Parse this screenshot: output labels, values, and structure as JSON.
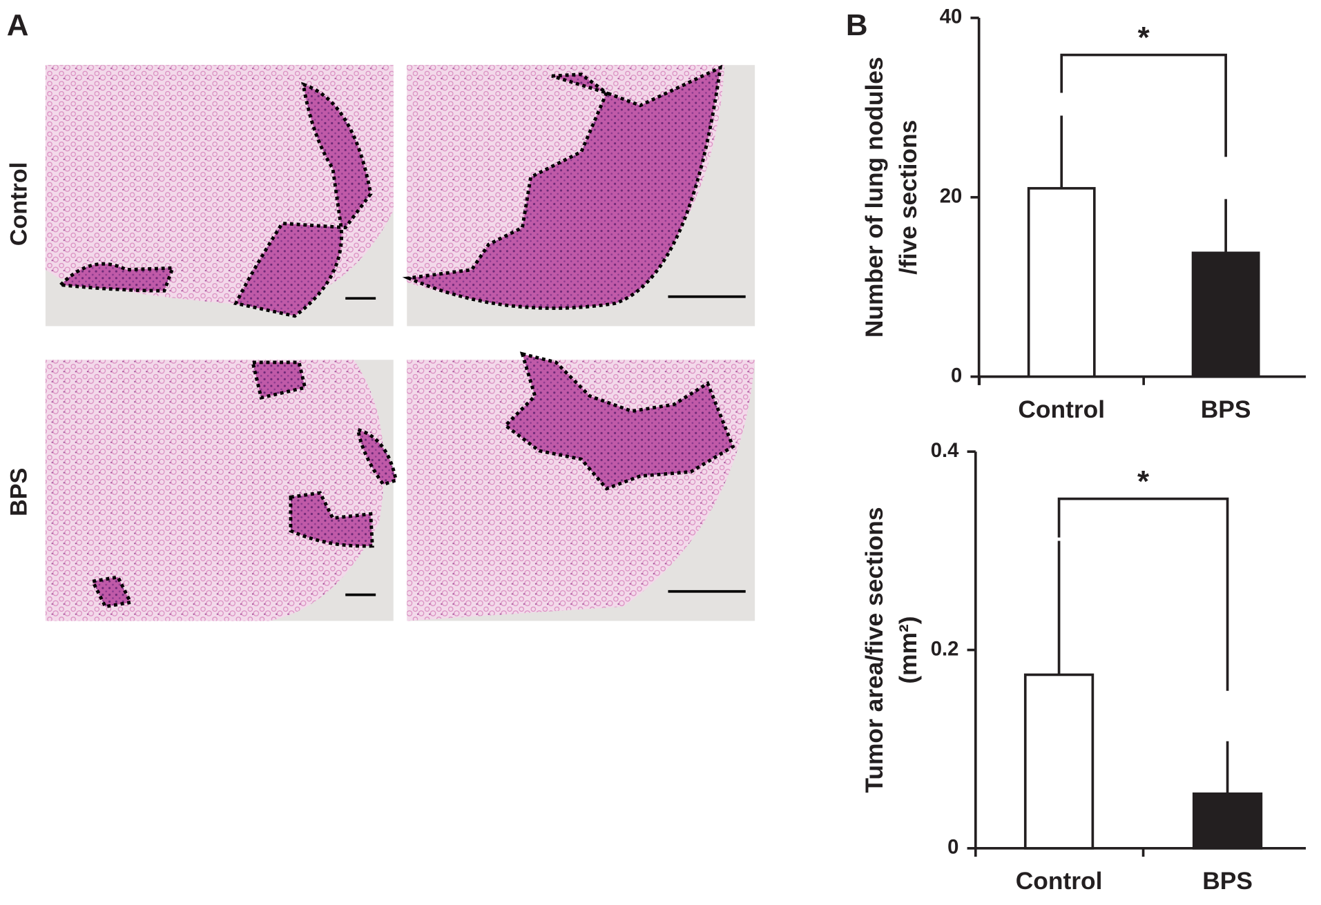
{
  "panels": {
    "a": "A",
    "b": "B"
  },
  "rows": [
    "Control",
    "BPS"
  ],
  "chart_data": [
    {
      "type": "bar",
      "ylabel": [
        "Number of lung nodules",
        "/five sections"
      ],
      "categories": [
        "Control",
        "BPS"
      ],
      "values": [
        21,
        13.8
      ],
      "errors": [
        8.1,
        6.0
      ],
      "colors": [
        "#ffffff",
        "#231f20"
      ],
      "ylim": [
        0,
        40
      ],
      "yticks": [
        0,
        20,
        40
      ],
      "annotation": "*"
    },
    {
      "type": "bar",
      "ylabel": [
        "Tumor area/five sections",
        "(mm²)"
      ],
      "categories": [
        "Control",
        "BPS"
      ],
      "values": [
        0.175,
        0.055
      ],
      "errors": [
        0.135,
        0.053
      ],
      "colors": [
        "#ffffff",
        "#231f20"
      ],
      "ylim": [
        0,
        0.4
      ],
      "yticks": [
        0,
        0.2,
        0.4
      ],
      "annotation": "*"
    }
  ]
}
